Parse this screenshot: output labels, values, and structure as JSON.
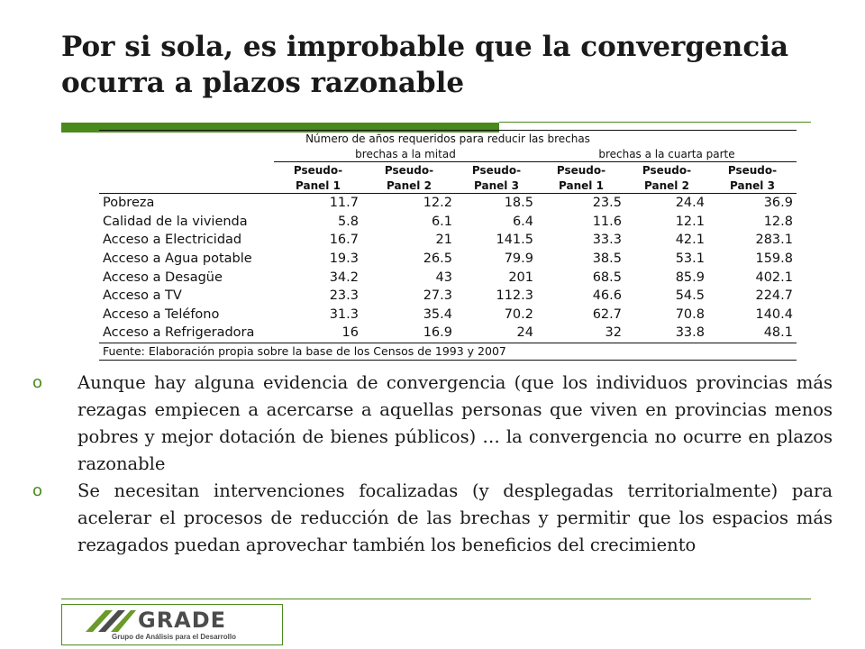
{
  "slide": {
    "title": "Por si sola, es improbable que la convergencia ocurra a plazos razonable"
  },
  "table": {
    "caption": "Número de años requeridos para reducir las brechas",
    "group_half": "brechas a la mitad",
    "group_quarter": "brechas a la cuarta parte",
    "pseudo_label": "Pseudo-",
    "panels": [
      "Panel 1",
      "Panel 2",
      "Panel 3",
      "Panel 1",
      "Panel 2",
      "Panel 3"
    ],
    "rows": [
      {
        "label": "Pobreza",
        "values": [
          "11.7",
          "12.2",
          "18.5",
          "23.5",
          "24.4",
          "36.9"
        ]
      },
      {
        "label": "Calidad de la vivienda",
        "values": [
          "5.8",
          "6.1",
          "6.4",
          "11.6",
          "12.1",
          "12.8"
        ]
      },
      {
        "label": "Acceso a Electricidad",
        "values": [
          "16.7",
          "21",
          "141.5",
          "33.3",
          "42.1",
          "283.1"
        ]
      },
      {
        "label": "Acceso a Agua potable",
        "values": [
          "19.3",
          "26.5",
          "79.9",
          "38.5",
          "53.1",
          "159.8"
        ]
      },
      {
        "label": "Acceso a Desagüe",
        "values": [
          "34.2",
          "43",
          "201",
          "68.5",
          "85.9",
          "402.1"
        ]
      },
      {
        "label": "Acceso a TV",
        "values": [
          "23.3",
          "27.3",
          "112.3",
          "46.6",
          "54.5",
          "224.7"
        ]
      },
      {
        "label": "Acceso a Teléfono",
        "values": [
          "31.3",
          "35.4",
          "70.2",
          "62.7",
          "70.8",
          "140.4"
        ]
      },
      {
        "label": "Acceso a Refrigeradora",
        "values": [
          "16",
          "16.9",
          "24",
          "32",
          "33.8",
          "48.1"
        ]
      }
    ],
    "source": "Fuente: Elaboración propia sobre la base de los Censos de 1993 y 2007"
  },
  "bullets": [
    {
      "marker": "o",
      "text": "Aunque hay alguna evidencia de convergencia (que los individuos provincias más rezagas empiecen a acercarse a aquellas personas que viven en provincias menos pobres y mejor dotación de bienes públicos) … la convergencia no ocurre en plazos razonable"
    },
    {
      "marker": "o",
      "text": "Se necesitan intervenciones focalizadas (y desplegadas territorialmente) para acelerar el procesos de reducción de las brechas y permitir que los espacios más rezagados puedan aprovechar también los beneficios del crecimiento"
    }
  ],
  "logo": {
    "name": "GRADE",
    "subtitle": "Grupo de Análisis para el Desarrollo"
  },
  "colors": {
    "accent": "#4a8a1c",
    "logo_green": "#6a9a2a",
    "logo_gray": "#4c4c4c"
  }
}
